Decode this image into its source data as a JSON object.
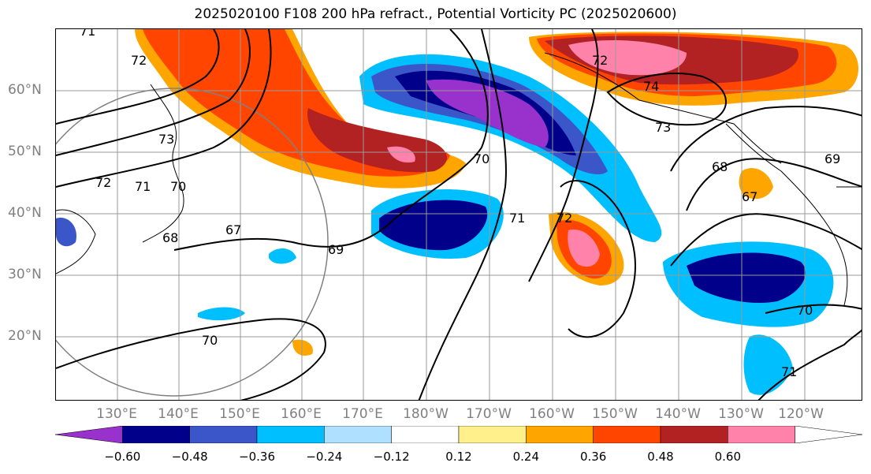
{
  "title": "2025020100 F108 200 hPa refract., Potential Vorticity PC (2025020600)",
  "lat_labels": [
    "60°N",
    "50°N",
    "40°N",
    "30°N",
    "20°N"
  ],
  "lon_labels": [
    "130°E",
    "140°E",
    "150°E",
    "160°E",
    "170°E",
    "180°W",
    "170°W",
    "160°W",
    "150°W",
    "140°W",
    "130°W",
    "120°W"
  ],
  "contour_labels": [
    "71",
    "72",
    "73",
    "74",
    "72",
    "73",
    "70",
    "71",
    "72",
    "68",
    "67",
    "72",
    "71",
    "70",
    "68",
    "67",
    "69",
    "70",
    "70",
    "71",
    "69"
  ],
  "colorbar": {
    "ticks": [
      "−0.60",
      "−0.48",
      "−0.36",
      "−0.24",
      "−0.12",
      "0.12",
      "0.24",
      "0.36",
      "0.48",
      "0.60"
    ],
    "colors": [
      "#9932cc",
      "#00008b",
      "#3a56c8",
      "#00bfff",
      "#b0e0ff",
      "#ffffff",
      "#fff08c",
      "#ffa500",
      "#ff4500",
      "#b22222",
      "#ff82ab",
      "#ffffff"
    ]
  }
}
